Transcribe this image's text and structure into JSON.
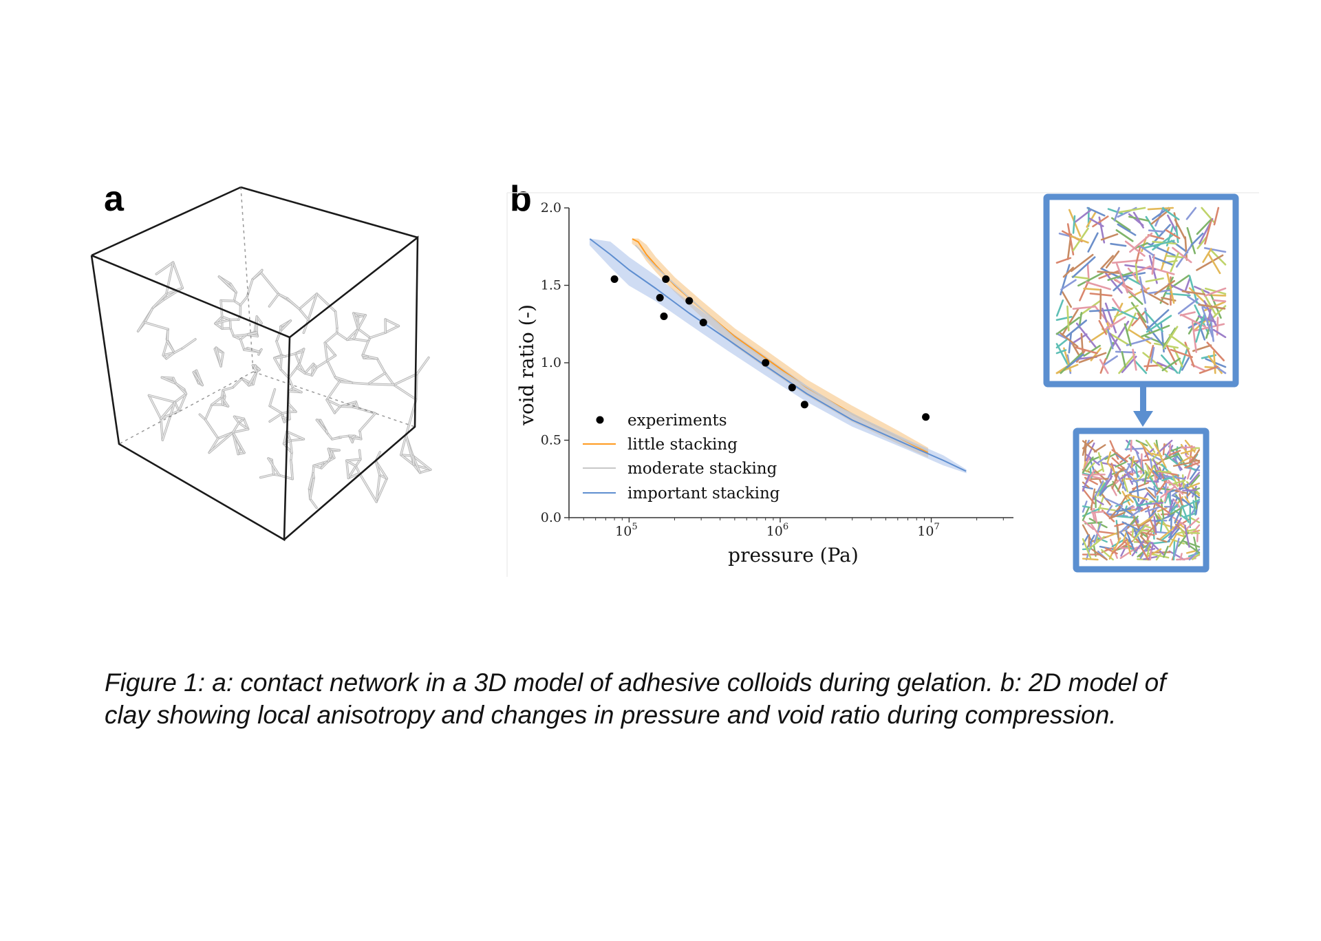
{
  "panel_a": {
    "label": "a"
  },
  "panel_b": {
    "label": "b"
  },
  "chart_data": {
    "type": "line",
    "title": "",
    "xlabel": "pressure (Pa)",
    "ylabel": "void ratio (-)",
    "x_scale": "log",
    "xlim": [
      40000,
      35000000
    ],
    "ylim": [
      0.0,
      2.0
    ],
    "x_ticks": [
      {
        "value": 100000,
        "base": "10",
        "exp": "5"
      },
      {
        "value": 1000000,
        "base": "10",
        "exp": "6"
      },
      {
        "value": 10000000,
        "base": "10",
        "exp": "7"
      }
    ],
    "y_ticks": [
      "0.0",
      "0.5",
      "1.0",
      "1.5",
      "2.0"
    ],
    "legend_position": "lower-left",
    "series": [
      {
        "name": "experiments",
        "kind": "scatter",
        "color": "#000000",
        "points": [
          {
            "x": 80000,
            "y": 1.54
          },
          {
            "x": 160000,
            "y": 1.42
          },
          {
            "x": 170000,
            "y": 1.3
          },
          {
            "x": 175000,
            "y": 1.54
          },
          {
            "x": 250000,
            "y": 1.4
          },
          {
            "x": 310000,
            "y": 1.26
          },
          {
            "x": 800000,
            "y": 1.0
          },
          {
            "x": 1200000,
            "y": 0.84
          },
          {
            "x": 1450000,
            "y": 0.73
          },
          {
            "x": 9200000,
            "y": 0.65
          }
        ]
      },
      {
        "name": "little stacking",
        "kind": "line",
        "color": "#ff9a1f",
        "band_color": "#f6c07a",
        "points": [
          {
            "x": 105000,
            "y": 1.8
          },
          {
            "x": 115000,
            "y": 1.78
          },
          {
            "x": 130000,
            "y": 1.7
          },
          {
            "x": 150000,
            "y": 1.63
          },
          {
            "x": 200000,
            "y": 1.5
          },
          {
            "x": 300000,
            "y": 1.35
          },
          {
            "x": 500000,
            "y": 1.17
          },
          {
            "x": 800000,
            "y": 1.03
          },
          {
            "x": 1500000,
            "y": 0.84
          },
          {
            "x": 3000000,
            "y": 0.67
          },
          {
            "x": 6000000,
            "y": 0.52
          },
          {
            "x": 9500000,
            "y": 0.42
          }
        ],
        "band_lower": [
          1.77,
          1.74,
          1.66,
          1.59,
          1.46,
          1.3,
          1.11,
          0.97,
          0.79,
          0.62,
          0.48,
          0.39
        ],
        "band_upper": [
          1.8,
          1.8,
          1.76,
          1.68,
          1.55,
          1.4,
          1.22,
          1.08,
          0.89,
          0.72,
          0.56,
          0.45
        ]
      },
      {
        "name": "moderate stacking",
        "kind": "line",
        "color": "#c8c8c8",
        "points": [
          {
            "x": 110000,
            "y": 1.76
          },
          {
            "x": 150000,
            "y": 1.62
          },
          {
            "x": 250000,
            "y": 1.42
          },
          {
            "x": 500000,
            "y": 1.16
          },
          {
            "x": 1000000,
            "y": 0.95
          },
          {
            "x": 2500000,
            "y": 0.71
          },
          {
            "x": 6000000,
            "y": 0.52
          },
          {
            "x": 9500000,
            "y": 0.43
          }
        ]
      },
      {
        "name": "important stacking",
        "kind": "line",
        "color": "#5e8ed0",
        "band_color": "#a9c1ea",
        "points": [
          {
            "x": 55000,
            "y": 1.8
          },
          {
            "x": 75000,
            "y": 1.7
          },
          {
            "x": 100000,
            "y": 1.6
          },
          {
            "x": 150000,
            "y": 1.48
          },
          {
            "x": 250000,
            "y": 1.32
          },
          {
            "x": 450000,
            "y": 1.15
          },
          {
            "x": 800000,
            "y": 0.98
          },
          {
            "x": 1500000,
            "y": 0.8
          },
          {
            "x": 3000000,
            "y": 0.63
          },
          {
            "x": 7000000,
            "y": 0.47
          },
          {
            "x": 12000000,
            "y": 0.37
          },
          {
            "x": 17000000,
            "y": 0.3
          }
        ],
        "band_lower": [
          1.76,
          1.62,
          1.5,
          1.4,
          1.25,
          1.08,
          0.92,
          0.75,
          0.59,
          0.44,
          0.34,
          0.29
        ],
        "band_upper": [
          1.8,
          1.78,
          1.68,
          1.56,
          1.39,
          1.21,
          1.04,
          0.85,
          0.67,
          0.5,
          0.4,
          0.31
        ]
      }
    ]
  },
  "inset_colors": [
    "#7fb46a",
    "#d9866d",
    "#9c7ec8",
    "#5ebfb5",
    "#e3b858",
    "#8a9ad8",
    "#e59aa6",
    "#6c8fca",
    "#bfd36a",
    "#c78b63"
  ],
  "arrow_color": "#5b8fd0",
  "caption": {
    "line1": "Figure 1: a: contact network in a 3D model of adhesive colloids during gelation. b: 2D model of",
    "line2": "clay showing local anisotropy and changes in pressure and void ratio during compression."
  }
}
